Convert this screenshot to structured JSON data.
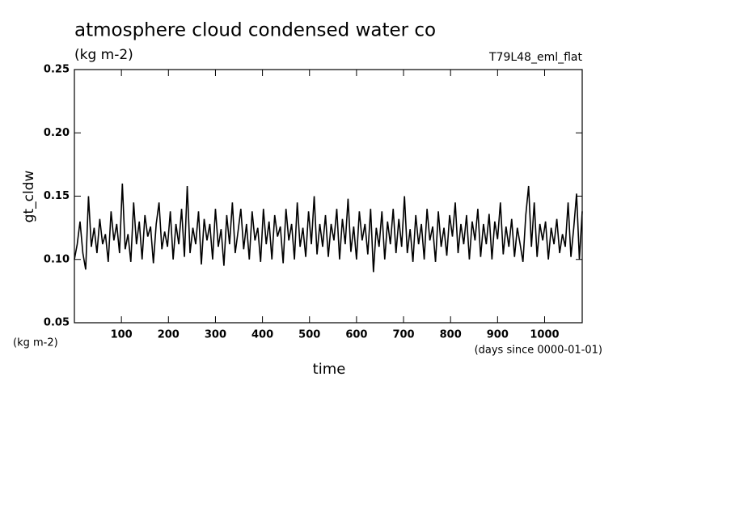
{
  "chart_data": {
    "type": "line",
    "title": "atmosphere cloud condensed water co",
    "subtitle": "(kg m-2)",
    "run_label": "T79L48_eml_flat",
    "y_label": "gt_cldw",
    "y_units": "(kg m-2)",
    "x_label": "time",
    "x_units": "(days since 0000-01-01)",
    "color": "#000000",
    "xlim": [
      0,
      1080
    ],
    "ylim": [
      0.05,
      0.25
    ],
    "xticks": [
      100,
      200,
      300,
      400,
      500,
      600,
      700,
      800,
      900,
      1000
    ],
    "yticks": [
      0.05,
      {
        "value": 0.1,
        "label": "0.10"
      },
      0.15,
      {
        "value": 0.2,
        "label": "0.20"
      },
      0.25
    ],
    "x": [
      0,
      6,
      12,
      18,
      24,
      30,
      36,
      42,
      48,
      54,
      60,
      66,
      72,
      78,
      84,
      90,
      96,
      102,
      108,
      114,
      120,
      126,
      132,
      138,
      144,
      150,
      156,
      162,
      168,
      174,
      180,
      186,
      192,
      198,
      204,
      210,
      216,
      222,
      228,
      234,
      240,
      246,
      252,
      258,
      264,
      270,
      276,
      282,
      288,
      294,
      300,
      306,
      312,
      318,
      324,
      330,
      336,
      342,
      348,
      354,
      360,
      366,
      372,
      378,
      384,
      390,
      396,
      402,
      408,
      414,
      420,
      426,
      432,
      438,
      444,
      450,
      456,
      462,
      468,
      474,
      480,
      486,
      492,
      498,
      504,
      510,
      516,
      522,
      528,
      534,
      540,
      546,
      552,
      558,
      564,
      570,
      576,
      582,
      588,
      594,
      600,
      606,
      612,
      618,
      624,
      630,
      636,
      642,
      648,
      654,
      660,
      666,
      672,
      678,
      684,
      690,
      696,
      702,
      708,
      714,
      720,
      726,
      732,
      738,
      744,
      750,
      756,
      762,
      768,
      774,
      780,
      786,
      792,
      798,
      804,
      810,
      816,
      822,
      828,
      834,
      840,
      846,
      852,
      858,
      864,
      870,
      876,
      882,
      888,
      894,
      900,
      906,
      912,
      918,
      924,
      930,
      936,
      942,
      948,
      954,
      960,
      966,
      972,
      978,
      984,
      990,
      996,
      1002,
      1008,
      1014,
      1020,
      1026,
      1032,
      1038,
      1044,
      1050,
      1056,
      1062,
      1068,
      1074,
      1080
    ],
    "values": [
      0.1,
      0.112,
      0.13,
      0.105,
      0.092,
      0.15,
      0.11,
      0.125,
      0.105,
      0.132,
      0.112,
      0.12,
      0.098,
      0.138,
      0.115,
      0.128,
      0.105,
      0.16,
      0.108,
      0.12,
      0.098,
      0.145,
      0.112,
      0.13,
      0.1,
      0.135,
      0.118,
      0.126,
      0.097,
      0.128,
      0.145,
      0.108,
      0.122,
      0.11,
      0.138,
      0.1,
      0.128,
      0.112,
      0.14,
      0.102,
      0.158,
      0.105,
      0.125,
      0.112,
      0.138,
      0.096,
      0.132,
      0.115,
      0.128,
      0.1,
      0.14,
      0.11,
      0.124,
      0.095,
      0.135,
      0.112,
      0.145,
      0.105,
      0.122,
      0.14,
      0.108,
      0.128,
      0.1,
      0.138,
      0.115,
      0.125,
      0.098,
      0.14,
      0.112,
      0.13,
      0.1,
      0.135,
      0.118,
      0.126,
      0.097,
      0.14,
      0.115,
      0.128,
      0.1,
      0.145,
      0.11,
      0.125,
      0.102,
      0.138,
      0.112,
      0.15,
      0.104,
      0.128,
      0.11,
      0.135,
      0.102,
      0.128,
      0.115,
      0.14,
      0.1,
      0.132,
      0.112,
      0.148,
      0.106,
      0.126,
      0.1,
      0.138,
      0.115,
      0.128,
      0.104,
      0.14,
      0.09,
      0.125,
      0.11,
      0.138,
      0.1,
      0.13,
      0.112,
      0.14,
      0.105,
      0.132,
      0.11,
      0.15,
      0.105,
      0.124,
      0.098,
      0.135,
      0.112,
      0.128,
      0.1,
      0.14,
      0.115,
      0.126,
      0.098,
      0.138,
      0.11,
      0.125,
      0.103,
      0.135,
      0.118,
      0.145,
      0.105,
      0.128,
      0.112,
      0.135,
      0.1,
      0.13,
      0.115,
      0.14,
      0.102,
      0.128,
      0.112,
      0.136,
      0.1,
      0.13,
      0.116,
      0.145,
      0.104,
      0.126,
      0.11,
      0.132,
      0.102,
      0.125,
      0.112,
      0.098,
      0.135,
      0.158,
      0.11,
      0.145,
      0.102,
      0.128,
      0.115,
      0.13,
      0.1,
      0.125,
      0.112,
      0.132,
      0.105,
      0.12,
      0.11,
      0.145,
      0.102,
      0.125,
      0.152,
      0.1,
      0.138
    ]
  }
}
